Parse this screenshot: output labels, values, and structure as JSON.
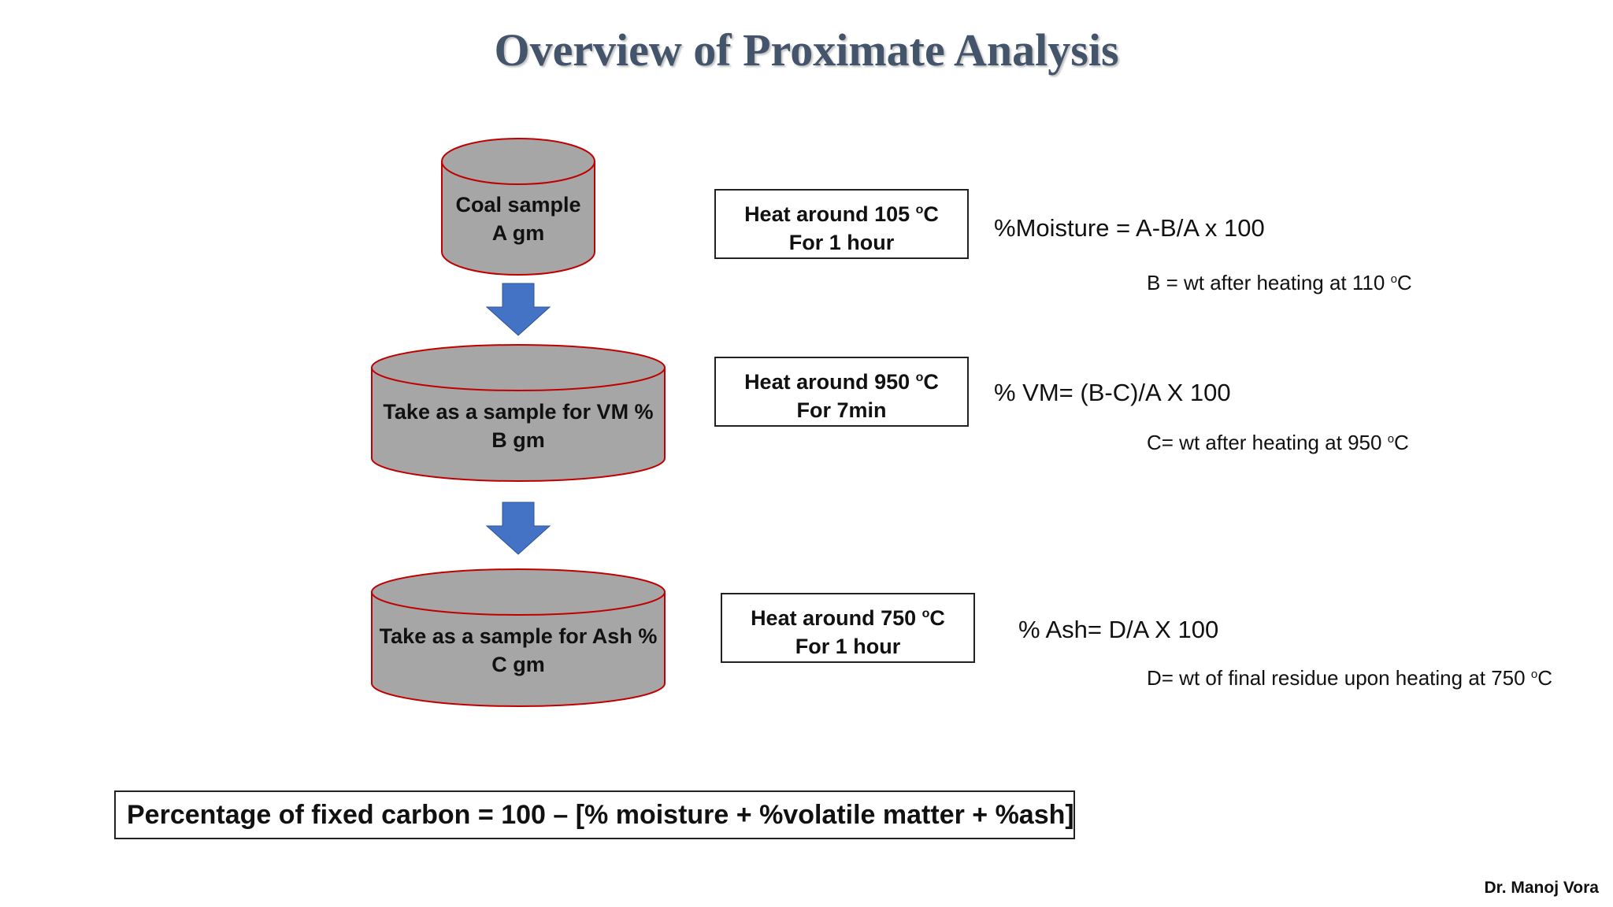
{
  "title": "Overview of Proximate Analysis",
  "cylinders": [
    {
      "line1": "Coal sample",
      "line2": "A gm"
    },
    {
      "line1": "Take as a sample for VM %",
      "line2": "B gm"
    },
    {
      "line1": "Take as a sample for Ash %",
      "line2": "C gm"
    }
  ],
  "steps": [
    {
      "heat_prefix": "Heat around 105 ",
      "deg": "o",
      "unit": "C",
      "duration": "For 1 hour",
      "formula": "%Moisture = A-B/A x 100",
      "note_prefix": "B = wt after heating at 110 ",
      "note_deg": "o",
      "note_unit": "C"
    },
    {
      "heat_prefix": "Heat around 950 ",
      "deg": "o",
      "unit": "C",
      "duration": "For 7min",
      "formula": "% VM= (B-C)/A X 100",
      "note_prefix": "C= wt after heating at 950 ",
      "note_deg": "o",
      "note_unit": "C"
    },
    {
      "heat_prefix": "Heat around 750 ",
      "deg": "o",
      "unit": "C",
      "duration": "For 1 hour",
      "formula": "% Ash= D/A X 100",
      "note_prefix": "D= wt of final residue upon heating at 750 ",
      "note_deg": "o",
      "note_unit": "C"
    }
  ],
  "summary": "Percentage of fixed carbon = 100 – [% moisture + %volatile matter + %ash]",
  "author": "Dr. Manoj Vora",
  "colors": {
    "cylinder_fill": "#a6a6a6",
    "cylinder_stroke": "#c00000",
    "arrow": "#4472c4",
    "title": "#44546a"
  }
}
